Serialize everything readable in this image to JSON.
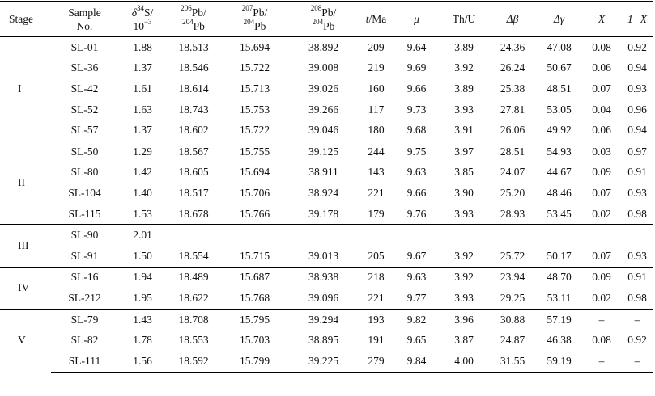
{
  "headers": {
    "stage": "Stage",
    "sample_l1": "Sample",
    "sample_l2": "No.",
    "d34s_sym": "δ",
    "d34s_sup": "34",
    "d34s_rest": "S/",
    "d34s_unit": "10",
    "d34s_unit_sup": "−3",
    "pb206_sup": "206",
    "pb206_l1": "Pb/",
    "pb206_den_sup": "204",
    "pb206_den": "Pb",
    "pb207_sup": "207",
    "pb207_l1": "Pb/",
    "pb207_den_sup": "204",
    "pb207_den": "Pb",
    "pb208_sup": "208",
    "pb208_l1": "Pb/",
    "pb208_den_sup": "204",
    "pb208_den": "Pb",
    "t_sym": "t",
    "t_rest": "/Ma",
    "mu": "μ",
    "thu": "Th/U",
    "dbeta": "Δβ",
    "dgamma": "Δγ",
    "x": "X",
    "one_minus_x": "1−X"
  },
  "groups": [
    {
      "stage": "I",
      "rows": [
        [
          "SL-01",
          "1.88",
          "18.513",
          "15.694",
          "38.892",
          "209",
          "9.64",
          "3.89",
          "24.36",
          "47.08",
          "0.08",
          "0.92"
        ],
        [
          "SL-36",
          "1.37",
          "18.546",
          "15.722",
          "39.008",
          "219",
          "9.69",
          "3.92",
          "26.24",
          "50.67",
          "0.06",
          "0.94"
        ],
        [
          "SL-42",
          "1.61",
          "18.614",
          "15.713",
          "39.026",
          "160",
          "9.66",
          "3.89",
          "25.38",
          "48.51",
          "0.07",
          "0.93"
        ],
        [
          "SL-52",
          "1.63",
          "18.743",
          "15.753",
          "39.266",
          "117",
          "9.73",
          "3.93",
          "27.81",
          "53.05",
          "0.04",
          "0.96"
        ],
        [
          "SL-57",
          "1.37",
          "18.602",
          "15.722",
          "39.046",
          "180",
          "9.68",
          "3.91",
          "26.06",
          "49.92",
          "0.06",
          "0.94"
        ]
      ]
    },
    {
      "stage": "II",
      "rows": [
        [
          "SL-50",
          "1.29",
          "18.567",
          "15.755",
          "39.125",
          "244",
          "9.75",
          "3.97",
          "28.51",
          "54.93",
          "0.03",
          "0.97"
        ],
        [
          "SL-80",
          "1.42",
          "18.605",
          "15.694",
          "38.911",
          "143",
          "9.63",
          "3.85",
          "24.07",
          "44.67",
          "0.09",
          "0.91"
        ],
        [
          "SL-104",
          "1.40",
          "18.517",
          "15.706",
          "38.924",
          "221",
          "9.66",
          "3.90",
          "25.20",
          "48.46",
          "0.07",
          "0.93"
        ],
        [
          "SL-115",
          "1.53",
          "18.678",
          "15.766",
          "39.178",
          "179",
          "9.76",
          "3.93",
          "28.93",
          "53.45",
          "0.02",
          "0.98"
        ]
      ]
    },
    {
      "stage": "III",
      "rows": [
        [
          "SL-90",
          "2.01",
          "",
          "",
          "",
          "",
          "",
          "",
          "",
          "",
          "",
          ""
        ],
        [
          "SL-91",
          "1.50",
          "18.554",
          "15.715",
          "39.013",
          "205",
          "9.67",
          "3.92",
          "25.72",
          "50.17",
          "0.07",
          "0.93"
        ]
      ]
    },
    {
      "stage": "IV",
      "rows": [
        [
          "SL-16",
          "1.94",
          "18.489",
          "15.687",
          "38.938",
          "218",
          "9.63",
          "3.92",
          "23.94",
          "48.70",
          "0.09",
          "0.91"
        ],
        [
          "SL-212",
          "1.95",
          "18.622",
          "15.768",
          "39.096",
          "221",
          "9.77",
          "3.93",
          "29.25",
          "53.11",
          "0.02",
          "0.98"
        ]
      ]
    },
    {
      "stage": "V",
      "rows": [
        [
          "SL-79",
          "1.43",
          "18.708",
          "15.795",
          "39.294",
          "193",
          "9.82",
          "3.96",
          "30.88",
          "57.19",
          "–",
          "–"
        ],
        [
          "SL-82",
          "1.78",
          "18.553",
          "15.703",
          "38.895",
          "191",
          "9.65",
          "3.87",
          "24.87",
          "46.38",
          "0.08",
          "0.92"
        ],
        [
          "SL-111",
          "1.56",
          "18.592",
          "15.799",
          "39.225",
          "279",
          "9.84",
          "4.00",
          "31.55",
          "59.19",
          "–",
          "–"
        ]
      ]
    }
  ]
}
